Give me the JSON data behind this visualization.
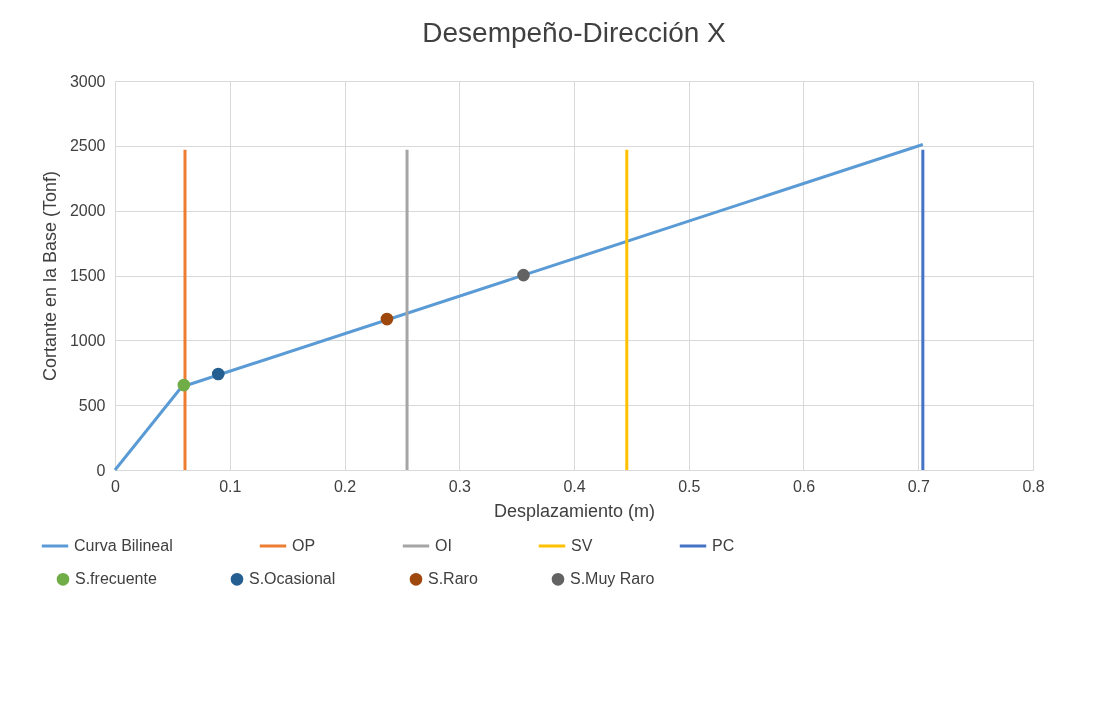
{
  "chart_data": {
    "type": "line",
    "title": "Desempeño-Dirección X",
    "xlabel": "Desplazamiento (m)",
    "ylabel": "Cortante en la Base (Tonf)",
    "xlim": [
      0,
      0.8
    ],
    "xticks": [
      0,
      0.1,
      0.2,
      0.3,
      0.4,
      0.5,
      0.6,
      0.7,
      0.8
    ],
    "ylim": [
      0,
      3000
    ],
    "yticks": [
      0,
      500,
      1000,
      1500,
      2000,
      2500,
      3000
    ],
    "grid": true,
    "legend": "bottom",
    "marker": "none",
    "series": [
      {
        "name": "Curva Bilineal",
        "color": "#5b9bd5",
        "x": [
          0,
          0.058,
          0.704
        ],
        "values": [
          0,
          640,
          2510
        ]
      },
      {
        "name": "OP",
        "type": "line",
        "color": "#ed7d31",
        "x": [
          0.061,
          0.061
        ],
        "values": [
          0,
          2470
        ]
      },
      {
        "name": "OI",
        "type": "line",
        "color": "#a5a5a5",
        "x": [
          0.2545,
          0.2545
        ],
        "values": [
          0,
          2470
        ]
      },
      {
        "name": "SV",
        "type": "line",
        "color": "#ffc000",
        "x": [
          0.446,
          0.446
        ],
        "values": [
          0,
          2470
        ]
      },
      {
        "name": "PC",
        "type": "line",
        "color": "#4472c4",
        "x": [
          0.704,
          0.704
        ],
        "values": [
          0,
          2470
        ]
      },
      {
        "name": "S.frecuente",
        "type": "scatter",
        "marker": "circle",
        "color": "#70ad47",
        "x": [
          0.06
        ],
        "values": [
          655
        ]
      },
      {
        "name": "S.Ocasional",
        "type": "scatter",
        "marker": "circle",
        "color": "#255e91",
        "x": [
          0.09
        ],
        "values": [
          740
        ]
      },
      {
        "name": "S.Raro",
        "type": "scatter",
        "marker": "circle",
        "color": "#9e480e",
        "x": [
          0.237
        ],
        "values": [
          1164
        ]
      },
      {
        "name": "S.Muy Raro",
        "type": "scatter",
        "marker": "circle",
        "color": "#636363",
        "x": [
          0.356
        ],
        "values": [
          1503
        ]
      }
    ]
  }
}
